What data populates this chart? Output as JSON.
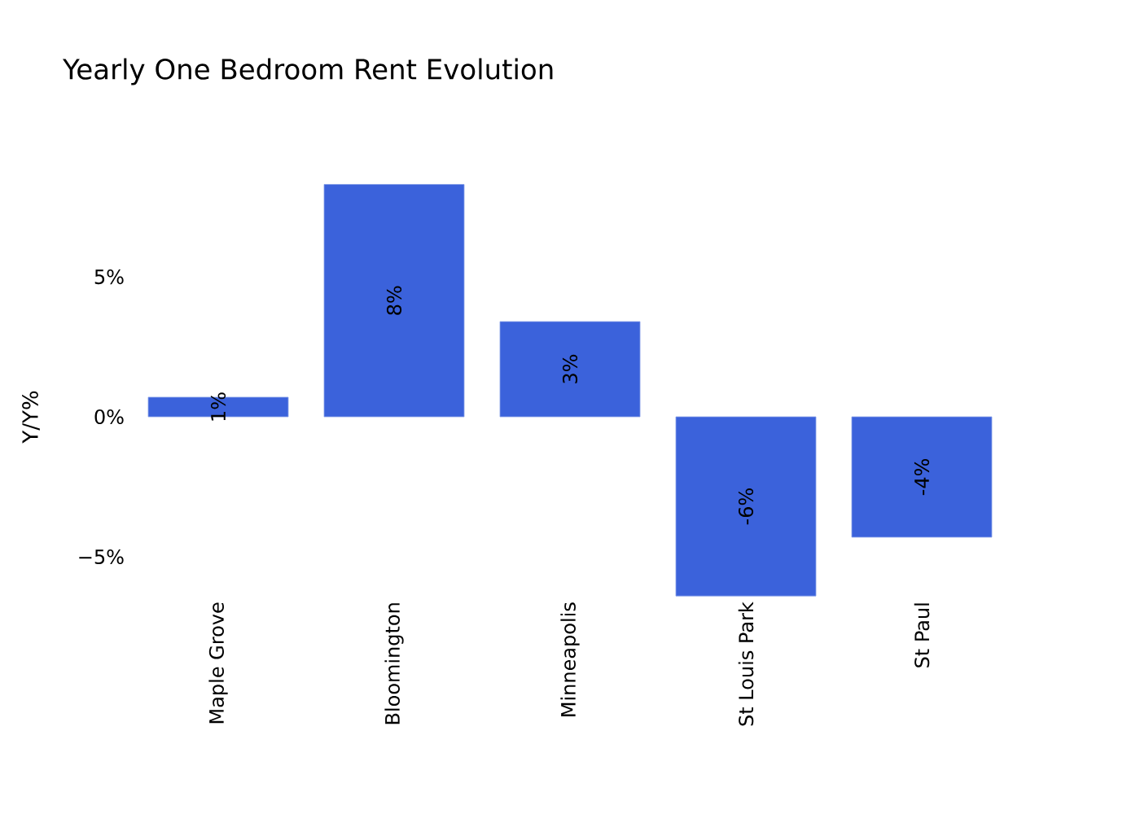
{
  "chart_data": {
    "type": "bar",
    "title": "Yearly One Bedroom Rent Evolution",
    "ylabel": "Y/Y%",
    "categories": [
      "Maple Grove",
      "Bloomington",
      "Minneapolis",
      "St Louis Park",
      "St Paul"
    ],
    "values": [
      0.7,
      8.3,
      3.4,
      -6.4,
      -4.3
    ],
    "value_labels": [
      "1%",
      "8%",
      "3%",
      "-6%",
      "-4%"
    ],
    "color": "#3b62db",
    "yticks": [
      {
        "value": -5,
        "label": "−5%"
      },
      {
        "value": 0,
        "label": "0%"
      },
      {
        "value": 5,
        "label": "5%"
      }
    ],
    "ylim": [
      -6.4,
      8.3
    ],
    "grid": false
  }
}
